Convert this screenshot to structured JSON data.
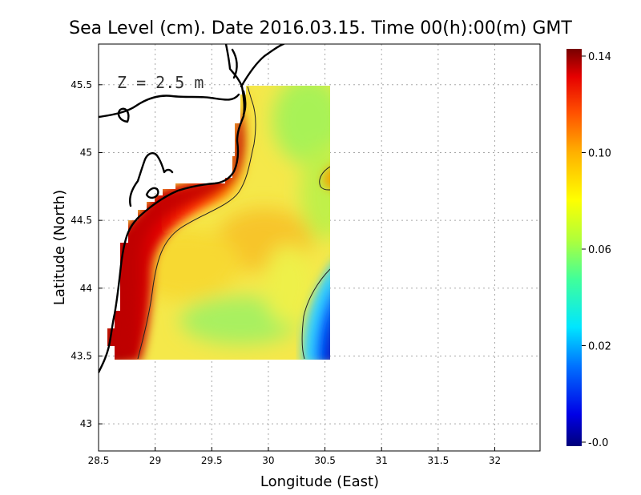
{
  "chart_data": {
    "type": "heatmap",
    "title": "Sea Level (cm). Date 2016.03.15. Time 00(h):00(m) GMT",
    "xlabel": "Longitude (East)",
    "ylabel": "Latitude (North)",
    "annotation": "Z = 2.5 m",
    "xlim": [
      28.5,
      32.4
    ],
    "ylim": [
      42.8,
      45.8
    ],
    "x_ticks": [
      "28.5",
      "29",
      "29.5",
      "30",
      "30.5",
      "31",
      "31.5",
      "32"
    ],
    "y_ticks": [
      "43",
      "43.5",
      "44",
      "44.5",
      "45",
      "45.5"
    ],
    "grid": true,
    "colorbar": {
      "position": "right",
      "range": [
        -0.0,
        0.14
      ],
      "ticks": [
        "0.14",
        "0.10",
        "0.06",
        "0.02",
        "-0.0"
      ],
      "colors": [
        "#00007a",
        "#0000e6",
        "#0070ff",
        "#00e6ff",
        "#40ff9a",
        "#b0ff3a",
        "#ffff00",
        "#ffb000",
        "#ff5000",
        "#e60000",
        "#780000"
      ]
    },
    "field_domain": {
      "lon": [
        28.6,
        30.55
      ],
      "lat": [
        43.5,
        45.5
      ]
    },
    "highlights": {
      "coastal_max": {
        "value": 0.13,
        "region": "western coast"
      },
      "open_sea": {
        "value": 0.085,
        "region": "central"
      },
      "minimum": {
        "value": 0.01,
        "region": "south-east corner"
      }
    }
  }
}
